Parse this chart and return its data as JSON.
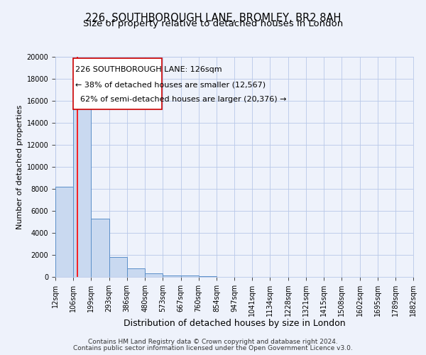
{
  "title": "226, SOUTHBOROUGH LANE, BROMLEY, BR2 8AH",
  "subtitle": "Size of property relative to detached houses in London",
  "xlabel": "Distribution of detached houses by size in London",
  "ylabel": "Number of detached properties",
  "footnote1": "Contains HM Land Registry data © Crown copyright and database right 2024.",
  "footnote2": "Contains public sector information licensed under the Open Government Licence v3.0.",
  "property_label": "226 SOUTHBOROUGH LANE: 126sqm",
  "pct_smaller": 38,
  "n_smaller": "12,567",
  "pct_larger": 62,
  "n_larger": "20,376",
  "bar_edges": [
    12,
    106,
    199,
    293,
    386,
    480,
    573,
    667,
    760,
    854,
    947,
    1041,
    1134,
    1228,
    1321,
    1415,
    1508,
    1602,
    1695,
    1789,
    1882
  ],
  "bar_heights": [
    8200,
    16600,
    5300,
    1800,
    750,
    300,
    150,
    100,
    60,
    0,
    0,
    0,
    0,
    0,
    0,
    0,
    0,
    0,
    0,
    0
  ],
  "bar_color": "#c9d9f0",
  "bar_edge_color": "#5b8fc9",
  "red_line_x": 126,
  "ylim": [
    0,
    20000
  ],
  "yticks": [
    0,
    2000,
    4000,
    6000,
    8000,
    10000,
    12000,
    14000,
    16000,
    18000,
    20000
  ],
  "background_color": "#eef2fb",
  "grid_color": "#b8c8e8",
  "annotation_box_color": "#ffffff",
  "annotation_box_edge": "#cc0000",
  "title_fontsize": 10.5,
  "subtitle_fontsize": 9.5,
  "xlabel_fontsize": 9,
  "ylabel_fontsize": 8,
  "tick_fontsize": 7,
  "annot_fontsize": 8,
  "footnote_fontsize": 6.5
}
